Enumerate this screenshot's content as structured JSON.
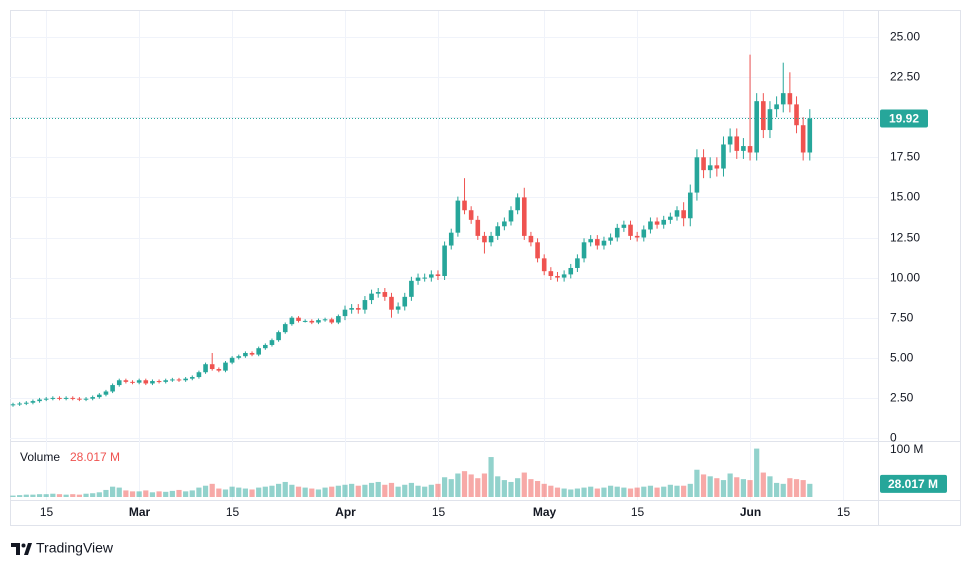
{
  "chart_data": {
    "type": "candlestick",
    "x": [
      "Feb 10",
      "Feb 11",
      "Feb 12",
      "Feb 13",
      "Feb 14",
      "Feb 15",
      "Feb 16",
      "Feb 17",
      "Feb 18",
      "Feb 19",
      "Feb 20",
      "Feb 21",
      "Feb 22",
      "Feb 23",
      "Feb 24",
      "Feb 25",
      "Feb 26",
      "Feb 27",
      "Feb 28",
      "Mar 1",
      "Mar 2",
      "Mar 3",
      "Mar 4",
      "Mar 5",
      "Mar 6",
      "Mar 7",
      "Mar 8",
      "Mar 9",
      "Mar 10",
      "Mar 11",
      "Mar 12",
      "Mar 13",
      "Mar 14",
      "Mar 15",
      "Mar 16",
      "Mar 17",
      "Mar 18",
      "Mar 19",
      "Mar 20",
      "Mar 21",
      "Mar 22",
      "Mar 23",
      "Mar 24",
      "Mar 25",
      "Mar 26",
      "Mar 27",
      "Mar 28",
      "Mar 29",
      "Mar 30",
      "Mar 31",
      "Apr 1",
      "Apr 2",
      "Apr 3",
      "Apr 4",
      "Apr 5",
      "Apr 6",
      "Apr 7",
      "Apr 8",
      "Apr 9",
      "Apr 10",
      "Apr 11",
      "Apr 12",
      "Apr 13",
      "Apr 14",
      "Apr 15",
      "Apr 16",
      "Apr 17",
      "Apr 18",
      "Apr 19",
      "Apr 20",
      "Apr 21",
      "Apr 22",
      "Apr 23",
      "Apr 24",
      "Apr 25",
      "Apr 26",
      "Apr 27",
      "Apr 28",
      "Apr 29",
      "Apr 30",
      "May 1",
      "May 2",
      "May 3",
      "May 4",
      "May 5",
      "May 6",
      "May 7",
      "May 8",
      "May 9",
      "May 10",
      "May 11",
      "May 12",
      "May 13",
      "May 14",
      "May 15",
      "May 16",
      "May 17",
      "May 18",
      "May 19",
      "May 20",
      "May 21",
      "May 22",
      "May 23",
      "May 24",
      "May 25",
      "May 26",
      "May 27",
      "May 28",
      "May 29",
      "May 30",
      "May 31",
      "Jun 1",
      "Jun 2",
      "Jun 3",
      "Jun 4",
      "Jun 5",
      "Jun 6",
      "Jun 7",
      "Jun 8",
      "Jun 9",
      "Jun 10"
    ],
    "open": [
      2.05,
      2.1,
      2.15,
      2.2,
      2.3,
      2.4,
      2.45,
      2.5,
      2.45,
      2.5,
      2.45,
      2.4,
      2.45,
      2.55,
      2.7,
      2.9,
      3.3,
      3.6,
      3.5,
      3.45,
      3.6,
      3.4,
      3.55,
      3.5,
      3.6,
      3.65,
      3.6,
      3.7,
      3.8,
      4.1,
      4.6,
      4.3,
      4.2,
      4.7,
      5.0,
      5.1,
      5.3,
      5.2,
      5.6,
      5.8,
      6.1,
      6.6,
      7.1,
      7.5,
      7.3,
      7.3,
      7.2,
      7.35,
      7.4,
      7.2,
      7.6,
      8.0,
      8.1,
      8.0,
      8.6,
      9.0,
      9.1,
      8.8,
      8.0,
      8.2,
      8.8,
      9.8,
      10.0,
      10.0,
      10.2,
      10.1,
      12.0,
      12.8,
      14.8,
      14.2,
      13.6,
      12.6,
      12.2,
      12.6,
      13.2,
      13.5,
      14.2,
      15.0,
      12.6,
      12.2,
      11.2,
      10.4,
      10.1,
      10.0,
      10.2,
      10.6,
      11.2,
      12.2,
      12.4,
      12.0,
      12.3,
      12.5,
      13.1,
      13.3,
      12.6,
      12.5,
      13.0,
      13.5,
      13.3,
      13.6,
      13.8,
      14.2,
      13.7,
      15.3,
      17.5,
      16.7,
      17.0,
      16.8,
      18.3,
      18.8,
      17.9,
      18.2,
      17.8,
      21.0,
      19.2,
      20.5,
      20.8,
      21.5,
      20.8,
      19.5,
      17.8
    ],
    "high": [
      2.2,
      2.25,
      2.3,
      2.4,
      2.5,
      2.55,
      2.6,
      2.6,
      2.6,
      2.6,
      2.55,
      2.55,
      2.65,
      2.8,
      3.0,
      3.4,
      3.7,
      3.7,
      3.6,
      3.7,
      3.7,
      3.65,
      3.65,
      3.7,
      3.75,
      3.75,
      3.8,
      3.9,
      4.2,
      4.7,
      5.3,
      4.4,
      4.8,
      5.1,
      5.2,
      5.4,
      5.4,
      5.7,
      5.9,
      6.2,
      6.7,
      7.2,
      7.6,
      7.6,
      7.4,
      7.4,
      7.45,
      7.5,
      7.5,
      7.7,
      8.25,
      8.35,
      8.35,
      8.85,
      9.25,
      9.35,
      9.35,
      9.05,
      8.45,
      9.05,
      10.05,
      10.25,
      10.25,
      10.45,
      10.45,
      12.25,
      13.05,
      15.05,
      16.2,
      14.45,
      13.85,
      12.85,
      12.85,
      13.45,
      13.75,
      14.45,
      15.25,
      15.6,
      12.85,
      12.45,
      11.45,
      10.65,
      10.35,
      10.45,
      10.85,
      11.45,
      12.45,
      12.65,
      12.65,
      12.55,
      12.75,
      13.35,
      13.55,
      13.55,
      12.85,
      13.25,
      13.75,
      13.75,
      13.85,
      14.05,
      14.45,
      14.7,
      15.8,
      18.0,
      18.0,
      17.5,
      17.5,
      18.8,
      19.3,
      19.3,
      18.7,
      23.9,
      21.5,
      21.5,
      21.0,
      21.3,
      23.4,
      22.8,
      21.3,
      20.0,
      20.5
    ],
    "low": [
      1.95,
      2.0,
      2.05,
      2.1,
      2.2,
      2.3,
      2.35,
      2.35,
      2.35,
      2.35,
      2.3,
      2.3,
      2.35,
      2.45,
      2.6,
      2.8,
      3.2,
      3.4,
      3.35,
      3.35,
      3.3,
      3.3,
      3.4,
      3.4,
      3.5,
      3.5,
      3.5,
      3.6,
      3.7,
      4.0,
      4.2,
      4.1,
      4.1,
      4.6,
      4.9,
      5.0,
      5.1,
      5.1,
      5.5,
      5.7,
      6.0,
      6.5,
      7.0,
      7.2,
      7.2,
      7.1,
      7.1,
      7.25,
      7.1,
      7.1,
      7.35,
      7.75,
      7.75,
      7.75,
      8.35,
      8.75,
      8.55,
      7.5,
      7.75,
      7.95,
      8.55,
      9.55,
      9.75,
      9.75,
      9.85,
      9.85,
      11.75,
      12.55,
      13.95,
      13.35,
      12.35,
      11.5,
      11.95,
      12.35,
      12.95,
      13.25,
      13.95,
      12.35,
      11.95,
      10.95,
      10.15,
      9.85,
      9.75,
      9.75,
      9.95,
      10.35,
      10.95,
      11.95,
      11.75,
      11.75,
      12.05,
      12.25,
      12.85,
      12.35,
      12.25,
      12.25,
      12.75,
      13.05,
      13.05,
      13.35,
      13.55,
      13.2,
      13.2,
      14.8,
      16.2,
      16.2,
      16.3,
      16.3,
      17.8,
      17.4,
      17.4,
      17.3,
      17.3,
      18.7,
      18.7,
      20.0,
      20.3,
      20.3,
      19.0,
      17.3,
      17.3
    ],
    "close": [
      2.1,
      2.15,
      2.2,
      2.3,
      2.4,
      2.45,
      2.5,
      2.45,
      2.5,
      2.45,
      2.4,
      2.45,
      2.55,
      2.7,
      2.9,
      3.3,
      3.6,
      3.5,
      3.45,
      3.6,
      3.4,
      3.55,
      3.5,
      3.6,
      3.65,
      3.6,
      3.7,
      3.8,
      4.1,
      4.6,
      4.3,
      4.2,
      4.7,
      5.0,
      5.1,
      5.3,
      5.2,
      5.6,
      5.8,
      6.1,
      6.6,
      7.1,
      7.5,
      7.3,
      7.3,
      7.2,
      7.35,
      7.4,
      7.2,
      7.6,
      8.0,
      8.1,
      8.0,
      8.6,
      9.0,
      9.1,
      8.8,
      8.0,
      8.2,
      8.8,
      9.8,
      10.0,
      10.0,
      10.2,
      10.1,
      12.0,
      12.8,
      14.8,
      14.2,
      13.6,
      12.6,
      12.2,
      12.6,
      13.2,
      13.5,
      14.2,
      15.0,
      12.6,
      12.2,
      11.2,
      10.4,
      10.1,
      10.0,
      10.2,
      10.6,
      11.2,
      12.2,
      12.4,
      12.0,
      12.3,
      12.5,
      13.1,
      13.3,
      12.6,
      12.5,
      13.0,
      13.5,
      13.3,
      13.6,
      13.8,
      14.2,
      13.7,
      15.3,
      17.5,
      16.7,
      17.0,
      16.8,
      18.3,
      18.8,
      17.9,
      18.2,
      17.8,
      21.0,
      19.2,
      20.5,
      20.8,
      21.5,
      20.8,
      19.5,
      17.8,
      19.92
    ],
    "up_color": "#26a69a",
    "down_color": "#ef5350",
    "volume": {
      "name": "Volume",
      "last_label": "28.017 M",
      "values": [
        3,
        4,
        5,
        5,
        6,
        6,
        7,
        6,
        5,
        6,
        5,
        7,
        8,
        10,
        15,
        22,
        20,
        14,
        12,
        12,
        14,
        10,
        12,
        11,
        13,
        15,
        12,
        14,
        20,
        24,
        28,
        18,
        16,
        22,
        20,
        18,
        16,
        20,
        22,
        24,
        28,
        32,
        26,
        22,
        20,
        18,
        16,
        20,
        22,
        24,
        26,
        28,
        24,
        26,
        30,
        32,
        26,
        30,
        22,
        26,
        30,
        24,
        22,
        26,
        28,
        42,
        38,
        50,
        55,
        48,
        40,
        50,
        85,
        44,
        36,
        32,
        40,
        52,
        38,
        34,
        28,
        24,
        20,
        18,
        16,
        18,
        20,
        22,
        18,
        20,
        24,
        22,
        20,
        18,
        20,
        22,
        24,
        20,
        22,
        26,
        24,
        24,
        28,
        58,
        48,
        44,
        40,
        36,
        50,
        42,
        38,
        36,
        103,
        52,
        44,
        30,
        28,
        40,
        38,
        36,
        28.017
      ]
    },
    "last_price": 19.92,
    "ylim": [
      0,
      25
    ],
    "yticks": [
      0,
      {
        "value": 2.5,
        "label": "2.50"
      },
      {
        "value": 5,
        "label": "5.00"
      },
      {
        "value": 7.5,
        "label": "7.50"
      },
      {
        "value": 10,
        "label": "10.00"
      },
      {
        "value": 12.5,
        "label": "12.50"
      },
      {
        "value": 15,
        "label": "15.00"
      },
      {
        "value": 17.5,
        "label": "17.50"
      },
      {
        "value": 20,
        "label": "20.00"
      },
      {
        "value": 22.5,
        "label": "22.50"
      },
      {
        "value": 25,
        "label": "25.00"
      }
    ],
    "vlim": [
      0,
      100
    ],
    "vticks": [
      {
        "value": 100,
        "label": "100 M"
      }
    ],
    "xticks": [
      {
        "value": "Feb 15",
        "label": "15"
      },
      {
        "value": "Mar 1",
        "label": "Mar"
      },
      {
        "value": "Mar 15",
        "label": "15"
      },
      {
        "value": "Apr 1",
        "label": "Apr"
      },
      {
        "value": "Apr 15",
        "label": "15"
      },
      {
        "value": "May 1",
        "label": "May"
      },
      {
        "value": "May 15",
        "label": "15"
      },
      {
        "value": "Jun 1",
        "label": "Jun"
      },
      {
        "value": "Jun 15",
        "label": "15"
      }
    ],
    "grid": true
  },
  "brand": "TradingView"
}
